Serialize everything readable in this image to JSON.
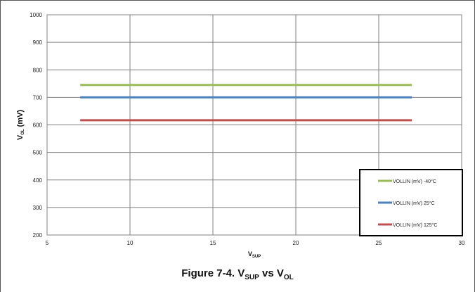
{
  "caption": {
    "prefix": "Figure 7-4. V",
    "sub1": "SUP",
    "middle": " vs V",
    "sub2": "OL"
  },
  "chart_data": {
    "type": "line",
    "xlabel": {
      "main": "V",
      "sub": "SUP"
    },
    "ylabel": {
      "main": "V",
      "sub": "OL",
      "suffix": " (mV)"
    },
    "xlim": [
      5,
      30
    ],
    "ylim": [
      200,
      1000
    ],
    "xticks": [
      5,
      10,
      15,
      20,
      25,
      30
    ],
    "yticks": [
      200,
      300,
      400,
      500,
      600,
      700,
      800,
      900,
      1000
    ],
    "grid": true,
    "legend_position": "bottom-right",
    "series": [
      {
        "name": "VOLLIN (mV) -40°C",
        "color": "#9BBB59",
        "x": [
          7,
          27
        ],
        "y": [
          745,
          745
        ]
      },
      {
        "name": "VOLLIN (mV) 25°C",
        "color": "#4F81BD",
        "x": [
          7,
          27
        ],
        "y": [
          700,
          700
        ]
      },
      {
        "name": "VOLLIN (mV) 125°C",
        "color": "#C0504D",
        "x": [
          7,
          27
        ],
        "y": [
          617,
          617
        ]
      }
    ]
  }
}
